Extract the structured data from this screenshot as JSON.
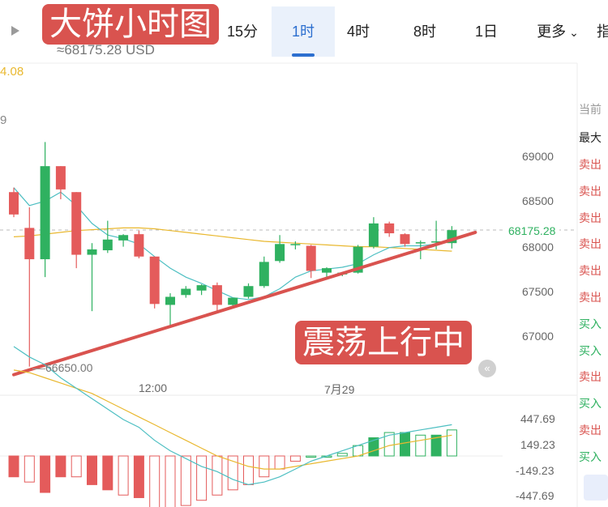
{
  "header": {
    "play_icon": "play-icon",
    "tabs": [
      {
        "label": "15分",
        "active": false
      },
      {
        "label": "1时",
        "active": true
      },
      {
        "label": "4时",
        "active": false
      },
      {
        "label": "8时",
        "active": false
      },
      {
        "label": "1日",
        "active": false
      },
      {
        "label": "更多",
        "active": false
      },
      {
        "label": "指",
        "active": false
      }
    ],
    "more_icon": "chevron-down-icon",
    "price_usd": "≈68175.28 USD"
  },
  "overlays": {
    "title_banner": "大饼小时图",
    "trend_banner": "震荡上行中"
  },
  "chart": {
    "ma_value": "4.08",
    "ma2_value": "9",
    "y_labels": [
      "69000",
      "68500",
      "68000",
      "67500",
      "67000"
    ],
    "current_price_label": "68175.28",
    "low_marker": "66650.00",
    "x_labels": [
      "12:00",
      "7月29"
    ],
    "macd_labels": [
      "447.69",
      "149.23",
      "-149.23",
      "-447.69"
    ],
    "collapse_icon": "double-chevron-left-icon",
    "colors": {
      "up": "#2fb160",
      "down": "#e45b5b",
      "ma_fast": "#4dbfc2",
      "ma_slow": "#e9b82f",
      "trend": "#d9534f"
    }
  },
  "chart_data": {
    "type": "candlestick",
    "ylim": [
      66650,
      69300
    ],
    "candles": [
      {
        "o": 68600,
        "h": 68650,
        "l": 68320,
        "c": 68350
      },
      {
        "o": 68200,
        "h": 68430,
        "l": 66650,
        "c": 67850
      },
      {
        "o": 67850,
        "h": 69160,
        "l": 67650,
        "c": 68890
      },
      {
        "o": 68890,
        "h": 68890,
        "l": 68520,
        "c": 68630
      },
      {
        "o": 68600,
        "h": 68600,
        "l": 67750,
        "c": 67900
      },
      {
        "o": 67900,
        "h": 68030,
        "l": 67270,
        "c": 67960
      },
      {
        "o": 67950,
        "h": 68280,
        "l": 67920,
        "c": 68070
      },
      {
        "o": 68060,
        "h": 68130,
        "l": 67990,
        "c": 68120
      },
      {
        "o": 68130,
        "h": 68170,
        "l": 67860,
        "c": 67880
      },
      {
        "o": 67880,
        "h": 67880,
        "l": 67300,
        "c": 67350
      },
      {
        "o": 67340,
        "h": 67470,
        "l": 67100,
        "c": 67430
      },
      {
        "o": 67450,
        "h": 67550,
        "l": 67420,
        "c": 67520
      },
      {
        "o": 67500,
        "h": 67570,
        "l": 67450,
        "c": 67560
      },
      {
        "o": 67560,
        "h": 67590,
        "l": 67260,
        "c": 67340
      },
      {
        "o": 67340,
        "h": 67420,
        "l": 67320,
        "c": 67420
      },
      {
        "o": 67430,
        "h": 67580,
        "l": 67410,
        "c": 67550
      },
      {
        "o": 67550,
        "h": 67880,
        "l": 67530,
        "c": 67820
      },
      {
        "o": 67830,
        "h": 68120,
        "l": 67810,
        "c": 68020
      },
      {
        "o": 68020,
        "h": 68050,
        "l": 67960,
        "c": 68020
      },
      {
        "o": 68000,
        "h": 68010,
        "l": 67640,
        "c": 67720
      },
      {
        "o": 67700,
        "h": 67760,
        "l": 67620,
        "c": 67750
      },
      {
        "o": 67680,
        "h": 67700,
        "l": 67660,
        "c": 67700
      },
      {
        "o": 67700,
        "h": 68010,
        "l": 67690,
        "c": 67990
      },
      {
        "o": 67990,
        "h": 68320,
        "l": 67970,
        "c": 68250
      },
      {
        "o": 68250,
        "h": 68270,
        "l": 68100,
        "c": 68140
      },
      {
        "o": 68130,
        "h": 68140,
        "l": 67990,
        "c": 68020
      },
      {
        "o": 68030,
        "h": 68060,
        "l": 67850,
        "c": 68040
      },
      {
        "o": 68040,
        "h": 68280,
        "l": 67960,
        "c": 68050
      },
      {
        "o": 68030,
        "h": 68220,
        "l": 67970,
        "c": 68175
      }
    ],
    "ma_fast": [
      68650,
      68450,
      68500,
      68600,
      68450,
      68250,
      68120,
      68080,
      68020,
      67880,
      67750,
      67650,
      67580,
      67500,
      67420,
      67400,
      67430,
      67520,
      67650,
      67720,
      67740,
      67760,
      67800,
      67900,
      67980,
      68000,
      68000,
      68020,
      68080
    ],
    "ma_slow": [
      68100,
      68110,
      68130,
      68150,
      68170,
      68180,
      68190,
      68200,
      68200,
      68190,
      68170,
      68150,
      68130,
      68110,
      68090,
      68070,
      68050,
      68040,
      68030,
      68020,
      68010,
      68000,
      67990,
      67990,
      67980,
      67970,
      67960,
      67950,
      67940
    ],
    "trend_line": [
      [
        0,
        66560
      ],
      [
        29.5,
        68150
      ]
    ],
    "macd": {
      "ylim": [
        -447.69,
        447.69
      ],
      "hist": [
        -80,
        -100,
        -140,
        -80,
        -80,
        -110,
        -130,
        -150,
        -160,
        -220,
        -210,
        -190,
        -170,
        -150,
        -130,
        -110,
        -80,
        -50,
        -20,
        0,
        0,
        10,
        40,
        70,
        90,
        90,
        80,
        80,
        100
      ],
      "dif": [
        420,
        380,
        350,
        300,
        260,
        220,
        180,
        140,
        110,
        60,
        20,
        -10,
        -40,
        -60,
        -90,
        -110,
        -100,
        -80,
        -50,
        -20,
        0,
        20,
        40,
        60,
        80,
        90,
        100,
        110,
        120
      ],
      "dea": [
        330,
        320,
        300,
        280,
        260,
        240,
        210,
        180,
        150,
        120,
        90,
        60,
        30,
        0,
        -20,
        -40,
        -50,
        -50,
        -40,
        -30,
        -20,
        -10,
        0,
        20,
        40,
        50,
        60,
        70,
        80
      ]
    }
  },
  "side_panel": {
    "header": "当前",
    "subheader": "最大",
    "trades": [
      "卖出",
      "卖出",
      "卖出",
      "卖出",
      "卖出",
      "卖出",
      "买入",
      "买入",
      "卖出",
      "买入",
      "卖出",
      "买入"
    ],
    "sell_color": "#d9534f",
    "buy_color": "#2fb160"
  }
}
